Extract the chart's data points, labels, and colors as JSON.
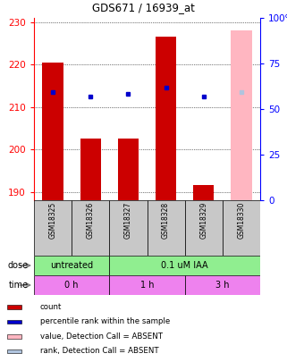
{
  "title": "GDS671 / 16939_at",
  "samples": [
    "GSM18325",
    "GSM18326",
    "GSM18327",
    "GSM18328",
    "GSM18329",
    "GSM18330"
  ],
  "bar_values": [
    220.5,
    202.5,
    202.5,
    226.5,
    191.5,
    null
  ],
  "bar_absent_values": [
    null,
    null,
    null,
    null,
    null,
    228.0
  ],
  "dot_values": [
    213.5,
    212.5,
    213.0,
    214.5,
    212.5,
    null
  ],
  "dot_absent_values": [
    null,
    null,
    null,
    null,
    null,
    213.5
  ],
  "ylim_left": [
    188,
    231
  ],
  "yticks_left": [
    190,
    200,
    210,
    220,
    230
  ],
  "ylim_right": [
    0,
    100
  ],
  "yticks_right": [
    0,
    25,
    50,
    75,
    100
  ],
  "bar_color": "#cc0000",
  "bar_absent_color": "#ffb6c1",
  "dot_color": "#0000cc",
  "dot_absent_color": "#b0c4de",
  "dose_items": [
    {
      "label": "untreated",
      "start": 0,
      "end": 2,
      "color": "#90ee90"
    },
    {
      "label": "0.1 uM IAA",
      "start": 2,
      "end": 6,
      "color": "#90ee90"
    }
  ],
  "time_items": [
    {
      "label": "0 h",
      "start": 0,
      "end": 2,
      "color": "#ee82ee"
    },
    {
      "label": "1 h",
      "start": 2,
      "end": 4,
      "color": "#ee82ee"
    },
    {
      "label": "3 h",
      "start": 4,
      "end": 6,
      "color": "#ee82ee"
    }
  ],
  "dose_row_label": "dose",
  "time_row_label": "time",
  "legend_items": [
    {
      "color": "#cc0000",
      "label": "count"
    },
    {
      "color": "#0000cc",
      "label": "percentile rank within the sample"
    },
    {
      "color": "#ffb6c1",
      "label": "value, Detection Call = ABSENT"
    },
    {
      "color": "#b0c4de",
      "label": "rank, Detection Call = ABSENT"
    }
  ],
  "n_samples": 6,
  "ybase": 188,
  "sample_box_color": "#c8c8c8"
}
